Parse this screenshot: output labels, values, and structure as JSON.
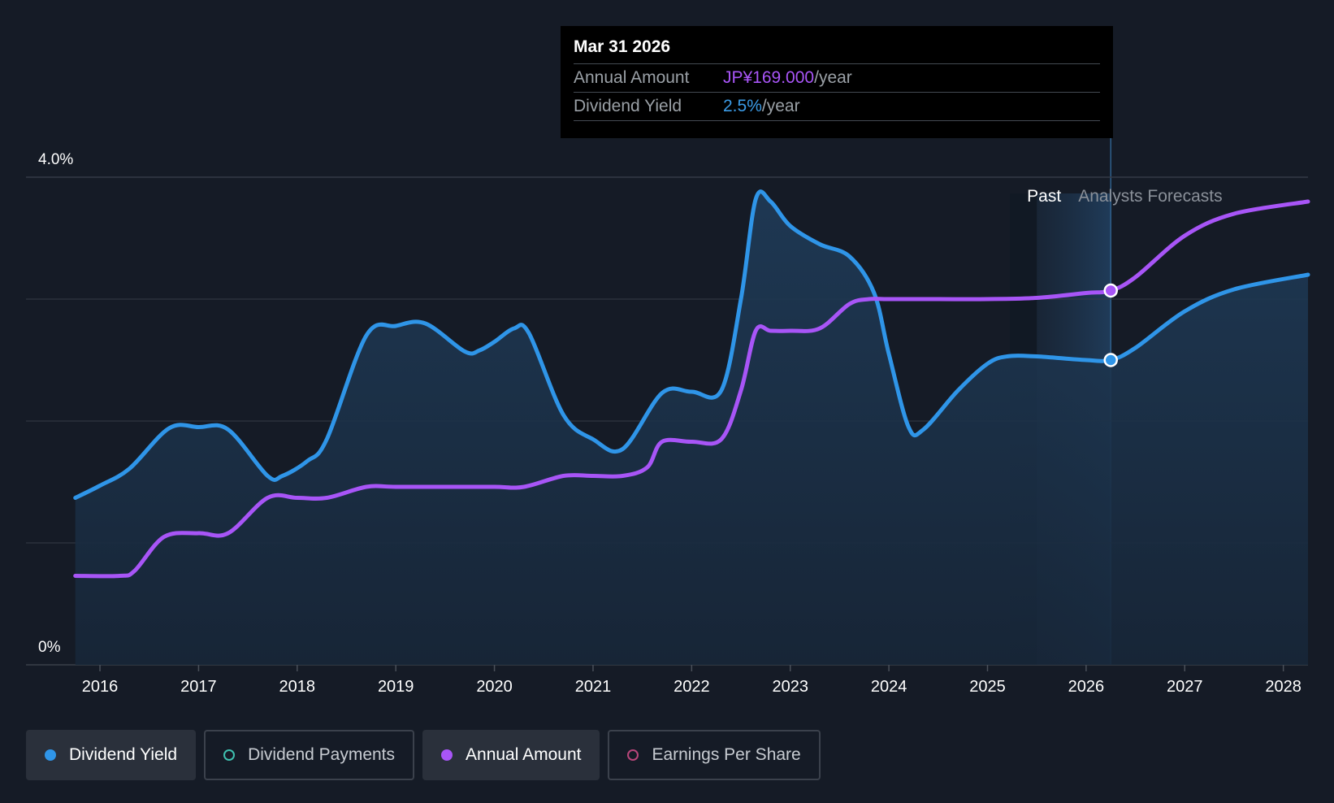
{
  "tooltip": {
    "date": "Mar 31 2026",
    "rows": [
      {
        "key": "Annual Amount",
        "value": "JP¥169.000",
        "unit": "/year"
      },
      {
        "key": "Dividend Yield",
        "value": "2.5%",
        "unit": "/year"
      }
    ]
  },
  "colors": {
    "background": "#151b26",
    "yield_line": "#2f95e8",
    "annual_line": "#a855f7",
    "grid": "#353b46",
    "forecast_band": "#1f3650"
  },
  "chart_data": {
    "type": "line",
    "title": "",
    "xlabel": "",
    "ylabel": "",
    "y_axis_labels": {
      "top": "4.0%",
      "bottom": "0%"
    },
    "ylim": [
      0,
      4.0
    ],
    "xlim": [
      2015.25,
      2028.25
    ],
    "x_ticks": [
      2016,
      2017,
      2018,
      2019,
      2020,
      2021,
      2022,
      2023,
      2024,
      2025,
      2026,
      2027,
      2028
    ],
    "x_tick_labels": [
      "2016",
      "2017",
      "2018",
      "2019",
      "2020",
      "2021",
      "2022",
      "2023",
      "2024",
      "2025",
      "2026",
      "2027",
      "2028"
    ],
    "regions": {
      "past_label": "Past",
      "forecast_label": "Analysts Forecasts",
      "past_forecast_boundary": 2025.5,
      "highlight_x": 2026.25
    },
    "series": [
      {
        "name": "Dividend Yield",
        "unit": "%",
        "filled": true,
        "points": [
          [
            2015.75,
            1.37
          ],
          [
            2016.0,
            1.47
          ],
          [
            2016.3,
            1.61
          ],
          [
            2016.7,
            1.94
          ],
          [
            2017.0,
            1.95
          ],
          [
            2017.3,
            1.93
          ],
          [
            2017.7,
            1.55
          ],
          [
            2017.85,
            1.55
          ],
          [
            2018.1,
            1.67
          ],
          [
            2018.3,
            1.85
          ],
          [
            2018.7,
            2.7
          ],
          [
            2019.0,
            2.78
          ],
          [
            2019.3,
            2.8
          ],
          [
            2019.7,
            2.57
          ],
          [
            2019.85,
            2.58
          ],
          [
            2020.0,
            2.65
          ],
          [
            2020.2,
            2.76
          ],
          [
            2020.35,
            2.72
          ],
          [
            2020.7,
            2.05
          ],
          [
            2021.0,
            1.85
          ],
          [
            2021.3,
            1.77
          ],
          [
            2021.7,
            2.23
          ],
          [
            2022.0,
            2.24
          ],
          [
            2022.3,
            2.25
          ],
          [
            2022.5,
            3.0
          ],
          [
            2022.65,
            3.82
          ],
          [
            2022.8,
            3.8
          ],
          [
            2023.0,
            3.6
          ],
          [
            2023.3,
            3.45
          ],
          [
            2023.6,
            3.35
          ],
          [
            2023.85,
            3.05
          ],
          [
            2024.0,
            2.55
          ],
          [
            2024.2,
            1.95
          ],
          [
            2024.35,
            1.93
          ],
          [
            2024.7,
            2.25
          ],
          [
            2025.0,
            2.47
          ],
          [
            2025.2,
            2.53
          ],
          [
            2025.5,
            2.53
          ],
          [
            2026.0,
            2.5
          ],
          [
            2026.25,
            2.5
          ],
          [
            2026.5,
            2.6
          ],
          [
            2027.0,
            2.9
          ],
          [
            2027.5,
            3.08
          ],
          [
            2028.25,
            3.2
          ]
        ]
      },
      {
        "name": "Annual Amount",
        "unit": "% (normalized)",
        "filled": false,
        "points": [
          [
            2015.75,
            0.73
          ],
          [
            2016.2,
            0.73
          ],
          [
            2016.35,
            0.77
          ],
          [
            2016.65,
            1.05
          ],
          [
            2017.0,
            1.08
          ],
          [
            2017.3,
            1.08
          ],
          [
            2017.7,
            1.37
          ],
          [
            2018.0,
            1.37
          ],
          [
            2018.3,
            1.37
          ],
          [
            2018.7,
            1.46
          ],
          [
            2019.0,
            1.46
          ],
          [
            2019.5,
            1.46
          ],
          [
            2020.0,
            1.46
          ],
          [
            2020.3,
            1.46
          ],
          [
            2020.7,
            1.55
          ],
          [
            2021.0,
            1.55
          ],
          [
            2021.3,
            1.55
          ],
          [
            2021.55,
            1.62
          ],
          [
            2021.7,
            1.83
          ],
          [
            2022.0,
            1.83
          ],
          [
            2022.3,
            1.85
          ],
          [
            2022.5,
            2.25
          ],
          [
            2022.65,
            2.74
          ],
          [
            2022.8,
            2.74
          ],
          [
            2023.0,
            2.74
          ],
          [
            2023.3,
            2.76
          ],
          [
            2023.6,
            2.96
          ],
          [
            2023.8,
            3.0
          ],
          [
            2024.0,
            3.0
          ],
          [
            2024.5,
            3.0
          ],
          [
            2025.0,
            3.0
          ],
          [
            2025.5,
            3.01
          ],
          [
            2026.0,
            3.05
          ],
          [
            2026.25,
            3.07
          ],
          [
            2026.5,
            3.18
          ],
          [
            2027.0,
            3.52
          ],
          [
            2027.5,
            3.7
          ],
          [
            2028.25,
            3.8
          ]
        ]
      }
    ],
    "markers": [
      {
        "series": "Annual Amount",
        "x": 2026.25,
        "y": 3.07
      },
      {
        "series": "Dividend Yield",
        "x": 2026.25,
        "y": 2.5
      }
    ]
  },
  "legend": [
    {
      "label": "Dividend Yield",
      "state": "active",
      "dot": "filled-blue"
    },
    {
      "label": "Dividend Payments",
      "state": "inactive",
      "dot": "hollow-teal"
    },
    {
      "label": "Annual Amount",
      "state": "active",
      "dot": "filled-purple"
    },
    {
      "label": "Earnings Per Share",
      "state": "inactive",
      "dot": "hollow-pink"
    }
  ]
}
